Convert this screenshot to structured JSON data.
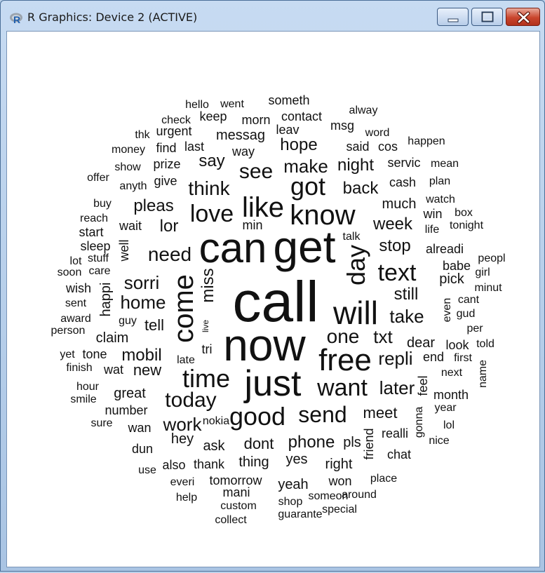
{
  "window": {
    "title": "R Graphics: Device 2 (ACTIVE)",
    "controls": {
      "minimize": "minimize-icon",
      "maximize": "maximize-icon",
      "close": "close-icon"
    },
    "close_color": "#c9452d"
  },
  "wordcloud": {
    "words": [
      "call",
      "now",
      "can",
      "get",
      "will",
      "just",
      "come",
      "free",
      "know",
      "like",
      "day",
      "time",
      "good",
      "text",
      "love",
      "got",
      "want",
      "see",
      "send",
      "today",
      "need",
      "think",
      "mobil",
      "one",
      "txt",
      "sorri",
      "later",
      "home",
      "miss",
      "work",
      "repli",
      "make",
      "take",
      "week",
      "pleas",
      "lor",
      "still",
      "stop",
      "dear",
      "back",
      "phone",
      "dont",
      "meet",
      "say",
      "hope",
      "night",
      "tell",
      "hey",
      "ask",
      "much",
      "great",
      "happi",
      "new",
      "claim",
      "pick",
      "number",
      "messag",
      "thank",
      "thing",
      "tomorrow",
      "pls",
      "yes",
      "yeah",
      "right",
      "friend",
      "realli",
      "feel",
      "alreadi",
      "tri",
      "someth",
      "contact",
      "morn",
      "keep",
      "check",
      "urgent",
      "hello",
      "went",
      "alway",
      "msg",
      "leav",
      "said",
      "cos",
      "word",
      "happen",
      "way",
      "last",
      "find",
      "money",
      "thk",
      "prize",
      "give",
      "show",
      "anyth",
      "servic",
      "mean",
      "cash",
      "plan",
      "offer",
      "buy",
      "watch",
      "win",
      "box",
      "reach",
      "start",
      "wait",
      "min",
      "talk",
      "life",
      "tonight",
      "sleep",
      "well",
      "lot",
      "stuff",
      "soon",
      "care",
      "peopl",
      "babe",
      "girl",
      "wish",
      "minut",
      "sent",
      "cant",
      "even",
      "award",
      "gud",
      "guy",
      "person",
      "per",
      "live",
      "late",
      "look",
      "told",
      "yet",
      "tone",
      "finish",
      "wat",
      "end",
      "next",
      "first",
      "hour",
      "smile",
      "month",
      "name",
      "sure",
      "gonna",
      "year",
      "wan",
      "lol",
      "nokia",
      "dun",
      "nice",
      "use",
      "also",
      "chat",
      "place",
      "everi",
      "won",
      "mani",
      "around",
      "help",
      "someon",
      "custom",
      "shop",
      "special",
      "collect",
      "guarante"
    ]
  }
}
